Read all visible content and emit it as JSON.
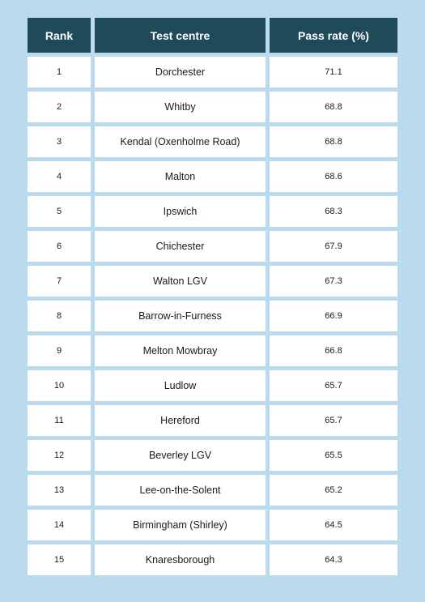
{
  "table": {
    "headers": {
      "rank": "Rank",
      "centre": "Test centre",
      "rate": "Pass rate (%)"
    },
    "rows": [
      {
        "rank": "1",
        "centre": "Dorchester",
        "rate": "71.1"
      },
      {
        "rank": "2",
        "centre": "Whitby",
        "rate": "68.8"
      },
      {
        "rank": "3",
        "centre": "Kendal (Oxenholme Road)",
        "rate": "68.8"
      },
      {
        "rank": "4",
        "centre": "Malton",
        "rate": "68.6"
      },
      {
        "rank": "5",
        "centre": "Ipswich",
        "rate": "68.3"
      },
      {
        "rank": "6",
        "centre": "Chichester",
        "rate": "67.9"
      },
      {
        "rank": "7",
        "centre": "Walton LGV",
        "rate": "67.3"
      },
      {
        "rank": "8",
        "centre": "Barrow-in-Furness",
        "rate": "66.9"
      },
      {
        "rank": "9",
        "centre": "Melton Mowbray",
        "rate": "66.8"
      },
      {
        "rank": "10",
        "centre": "Ludlow",
        "rate": "65.7"
      },
      {
        "rank": "11",
        "centre": "Hereford",
        "rate": "65.7"
      },
      {
        "rank": "12",
        "centre": "Beverley LGV",
        "rate": "65.5"
      },
      {
        "rank": "13",
        "centre": "Lee-on-the-Solent",
        "rate": "65.2"
      },
      {
        "rank": "14",
        "centre": "Birmingham (Shirley)",
        "rate": "64.5"
      },
      {
        "rank": "15",
        "centre": "Knaresborough",
        "rate": "64.3"
      }
    ]
  },
  "colors": {
    "background": "#bcdaed",
    "header_fill": "#1f4a5a",
    "header_text": "#ffffff",
    "cell_fill": "#ffffff",
    "cell_text": "#1a1a1a"
  }
}
